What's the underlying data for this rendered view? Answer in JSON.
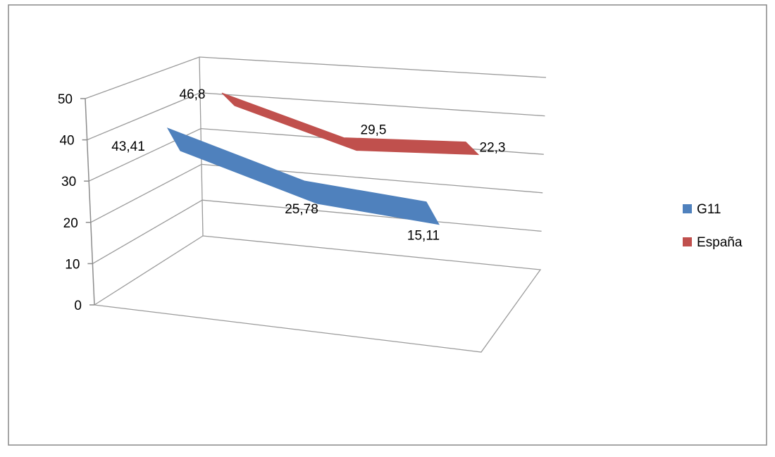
{
  "chart_data": {
    "type": "line",
    "style": "3d",
    "categories": [
      "",
      "",
      ""
    ],
    "series": [
      {
        "name": "G11",
        "values": [
          43.41,
          25.78,
          15.11
        ],
        "labels": [
          "43,41",
          "25,78",
          "15,11"
        ],
        "color": "#4F81BD"
      },
      {
        "name": "España",
        "values": [
          46.8,
          29.5,
          22.3
        ],
        "labels": [
          "46,8",
          "29,5",
          "22,3"
        ],
        "color": "#C0504D"
      }
    ],
    "y_ticks": [
      "0",
      "10",
      "20",
      "30",
      "40",
      "50"
    ],
    "ylim": [
      0,
      50
    ],
    "title": "",
    "xlabel": "",
    "ylabel": "",
    "grid": true,
    "legend": "right"
  }
}
